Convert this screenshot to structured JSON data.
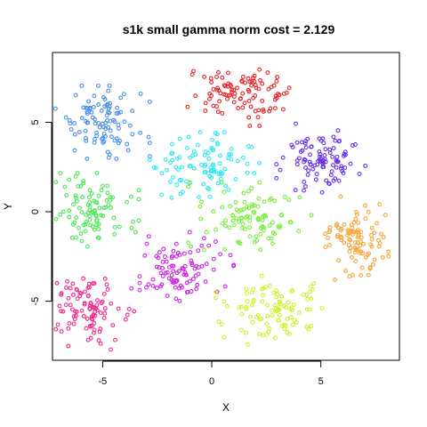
{
  "chart_data": {
    "type": "scatter",
    "title": "s1k small gamma norm cost = 2.129",
    "xlabel": "X",
    "ylabel": "Y",
    "xlim": [
      -7.3,
      8.6
    ],
    "ylim": [
      -8.3,
      8.9
    ],
    "xticks": [
      -5,
      0,
      5
    ],
    "yticks": [
      -5,
      0,
      5
    ],
    "xtick_labels": [
      "-5",
      "0",
      "5"
    ],
    "ytick_labels": [
      "-5",
      "0",
      "5"
    ],
    "grid": false,
    "legend": "none",
    "marker": "open-circle",
    "clusters": [
      {
        "color": "#E8242A",
        "center": [
          1.2,
          6.6
        ],
        "spread": [
          1.05,
          0.75
        ],
        "n": 100
      },
      {
        "color": "#4A8FE8",
        "center": [
          -5.0,
          5.0
        ],
        "spread": [
          0.9,
          0.85
        ],
        "n": 100
      },
      {
        "color": "#6A33E8",
        "center": [
          5.0,
          3.0
        ],
        "spread": [
          0.85,
          0.8
        ],
        "n": 100
      },
      {
        "color": "#30E8F0",
        "center": [
          -0.2,
          2.4
        ],
        "spread": [
          1.1,
          0.85
        ],
        "n": 100
      },
      {
        "color": "#4AE854",
        "center": [
          -5.5,
          0.0
        ],
        "spread": [
          0.9,
          0.9
        ],
        "n": 100
      },
      {
        "color": "#78EE3C",
        "center": [
          1.8,
          -0.4
        ],
        "spread": [
          1.2,
          0.85
        ],
        "n": 100
      },
      {
        "color": "#F5A53A",
        "center": [
          6.7,
          -1.5
        ],
        "spread": [
          0.85,
          1.0
        ],
        "n": 100
      },
      {
        "color": "#F02A90",
        "center": [
          -5.6,
          -5.3
        ],
        "spread": [
          0.85,
          1.0
        ],
        "n": 100
      },
      {
        "color": "#C82ADF",
        "center": [
          -1.4,
          -3.3
        ],
        "spread": [
          1.0,
          0.9
        ],
        "n": 100
      },
      {
        "color": "#CFF230",
        "center": [
          2.7,
          -5.5
        ],
        "spread": [
          1.05,
          0.8
        ],
        "n": 100
      }
    ]
  }
}
